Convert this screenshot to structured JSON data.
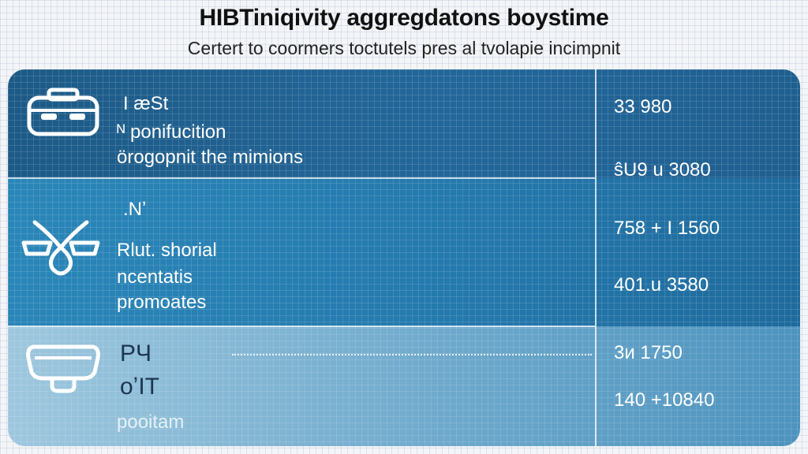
{
  "header": {
    "title": "HIBTiniqivity aggregdatons boystime",
    "subtitle": "Certert to coormers toctutels pres al tvolapie incimpnit"
  },
  "rows": [
    {
      "icon": "briefcase-icon",
      "lines": [
        "I   æSt",
        "ᴺ ponifucition",
        "örogopnit  the mimions"
      ],
      "values": [
        "33 980",
        "ŝU9 u 3080"
      ]
    },
    {
      "icon": "drone-icon",
      "lines": [
        ".Nʼ",
        "Rlut. shorial",
        "ncentatis",
        "promoates"
      ],
      "values": [
        "758 + I 1560",
        "401.u 3580"
      ]
    },
    {
      "icon": "headset-icon",
      "lines": [
        "PЧ",
        "oʼIT",
        "pooitam"
      ],
      "values": [
        "3и 1750",
        "140 +10840"
      ]
    }
  ],
  "colors": {
    "band_top": "#1f5f90",
    "band_middle": "#2478ac",
    "band_bottom": "#6ea9cc",
    "divider": "#ffffff"
  }
}
